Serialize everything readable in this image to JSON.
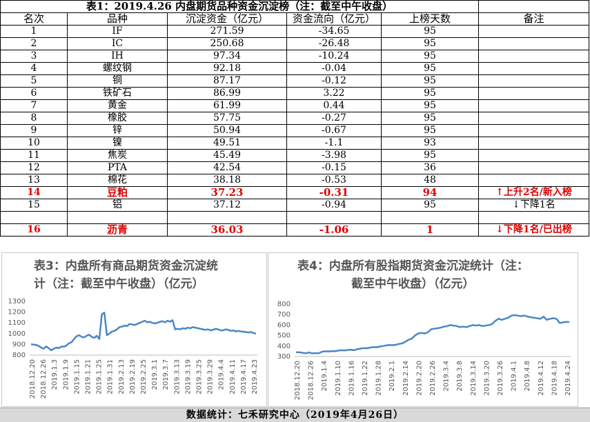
{
  "table": {
    "title": "表1：2019.4.26 内盘期货品种资金沉淀榜（注：截至中午收盘）",
    "headers": [
      "名次",
      "品种",
      "沉淀资金（亿元）",
      "资金流向（亿元）",
      "上榜天数",
      "备注"
    ],
    "rows": [
      {
        "rank": "1",
        "name": "IF",
        "fund": "271.59",
        "flow": "-34.65",
        "days": "95",
        "note": ""
      },
      {
        "rank": "2",
        "name": "IC",
        "fund": "250.68",
        "flow": "-26.48",
        "days": "95",
        "note": ""
      },
      {
        "rank": "3",
        "name": "IH",
        "fund": "97.34",
        "flow": "-10.24",
        "days": "95",
        "note": ""
      },
      {
        "rank": "4",
        "name": "螺纹钢",
        "fund": "92.18",
        "flow": "-0.04",
        "days": "95",
        "note": ""
      },
      {
        "rank": "5",
        "name": "铜",
        "fund": "87.17",
        "flow": "-0.12",
        "days": "95",
        "note": ""
      },
      {
        "rank": "6",
        "name": "铁矿石",
        "fund": "86.99",
        "flow": "3.22",
        "days": "95",
        "note": ""
      },
      {
        "rank": "7",
        "name": "黄金",
        "fund": "61.99",
        "flow": "0.44",
        "days": "95",
        "note": ""
      },
      {
        "rank": "8",
        "name": "橡胶",
        "fund": "57.75",
        "flow": "-0.27",
        "days": "95",
        "note": ""
      },
      {
        "rank": "9",
        "name": "锌",
        "fund": "50.94",
        "flow": "-0.67",
        "days": "95",
        "note": ""
      },
      {
        "rank": "10",
        "name": "镍",
        "fund": "49.51",
        "flow": "-1.1",
        "days": "93",
        "note": ""
      },
      {
        "rank": "11",
        "name": "焦炭",
        "fund": "45.49",
        "flow": "-3.98",
        "days": "95",
        "note": ""
      },
      {
        "rank": "12",
        "name": "PTA",
        "fund": "42.54",
        "flow": "-0.15",
        "days": "36",
        "note": ""
      },
      {
        "rank": "13",
        "name": "棉花",
        "fund": "38.18",
        "flow": "-0.53",
        "days": "48",
        "note": ""
      },
      {
        "rank": "14",
        "name": "豆粕",
        "fund": "37.23",
        "flow": "-0.31",
        "days": "94",
        "note": "↑上升2名/新入榜"
      },
      {
        "rank": "15",
        "name": "铝",
        "fund": "37.12",
        "flow": "-0.94",
        "days": "95",
        "note": "↓下降1名"
      },
      {
        "rank": "16",
        "name": "沥青",
        "fund": "36.03",
        "flow": "-1.06",
        "days": "1",
        "note": "↓下降1名/已出榜"
      }
    ]
  },
  "chart3": {
    "title_line1": "表3：内盘所有商品期货资金沉淀统",
    "title_line2": "计（注：截至中午收盘）（亿元）",
    "yticks": [
      "1300",
      "1200",
      "1100",
      "1000",
      "900",
      "800"
    ],
    "xticks": [
      "2018.12.20",
      "2018.12.26",
      "2019.1.3",
      "2019.1.9",
      "2019.1.15",
      "2019.1.21",
      "2019.1.25",
      "2019.1.31",
      "2019.2.13",
      "2019.2.19",
      "2019.2.25",
      "2019.3.1",
      "2019.3.7",
      "2019.3.13",
      "2019.3.19",
      "2019.3.25",
      "2019.3.29",
      "2019.4.4",
      "2019.4.11",
      "2019.4.17",
      "2019.4.23"
    ]
  },
  "chart4": {
    "title_line1": "表4：内盘所有股指期货资金沉淀统计（注：",
    "title_line2": "截至中午收盘）（亿元）",
    "yticks": [
      "800",
      "700",
      "600",
      "500",
      "400",
      "300"
    ],
    "xticks": [
      "2018.12.20",
      "2018.12.26",
      "2019.1.4",
      "2019.1.10",
      "2019.1.16",
      "2019.1.22",
      "2019.1.28",
      "2019.2.1",
      "2019.2.14",
      "2019.2.20",
      "2019.2.26",
      "2019.3.4",
      "2019.3.8",
      "2019.3.14",
      "2019.3.20",
      "2019.3.26",
      "2019.4.1",
      "2019.4.8",
      "2019.4.12",
      "2019.4.18",
      "2019.4.24"
    ]
  },
  "chart_data": [
    {
      "type": "line",
      "title": "表3：内盘所有商品期货资金沉淀统计（注：截至中午收盘）（亿元）",
      "ylim": [
        800,
        1300
      ],
      "color": "#4a86c5",
      "values": [
        900,
        898,
        895,
        885,
        870,
        860,
        880,
        865,
        845,
        860,
        870,
        865,
        880,
        878,
        890,
        910,
        920,
        950,
        975,
        985,
        970,
        965,
        980,
        990,
        970,
        960,
        980,
        950,
        1180,
        1195,
        985,
        1000,
        1020,
        1025,
        1040,
        1060,
        1065,
        1075,
        1070,
        1090,
        1085,
        1080,
        1090,
        1100,
        1110,
        1120,
        1105,
        1110,
        1100,
        1095,
        1100,
        1110,
        1115,
        1105,
        1120,
        1110,
        1125,
        1040,
        1045,
        1040,
        1050,
        1045,
        1055,
        1050,
        1060,
        1055,
        1050,
        1045,
        1040,
        1035,
        1040,
        1030,
        1035,
        1045,
        1040,
        1030,
        1030,
        1040,
        1035,
        1025,
        1030,
        1020,
        1025,
        1020,
        1018,
        1015,
        1010,
        1015,
        1005,
        1000
      ]
    },
    {
      "type": "line",
      "title": "表4：内盘所有股指期货资金沉淀统计（注：截至中午收盘）（亿元）",
      "ylim": [
        300,
        800
      ],
      "color": "#4a86c5",
      "values": [
        340,
        340,
        335,
        330,
        338,
        330,
        332,
        330,
        345,
        350,
        348,
        352,
        350,
        355,
        360,
        358,
        362,
        365,
        360,
        370,
        375,
        380,
        378,
        385,
        390,
        388,
        395,
        400,
        405,
        410,
        408,
        412,
        420,
        425,
        440,
        460,
        470,
        500,
        520,
        525,
        520,
        530,
        560,
        565,
        570,
        575,
        585,
        590,
        600,
        595,
        590,
        580,
        585,
        580,
        590,
        600,
        595,
        600,
        590,
        595,
        600,
        610,
        640,
        660,
        650,
        660,
        670,
        690,
        695,
        690,
        685,
        690,
        680,
        675,
        670,
        665,
        660,
        680,
        650,
        660,
        665,
        660,
        620,
        625,
        630,
        628
      ]
    }
  ],
  "footer": "数据统计：七禾研究中心（2019年4月26日）"
}
